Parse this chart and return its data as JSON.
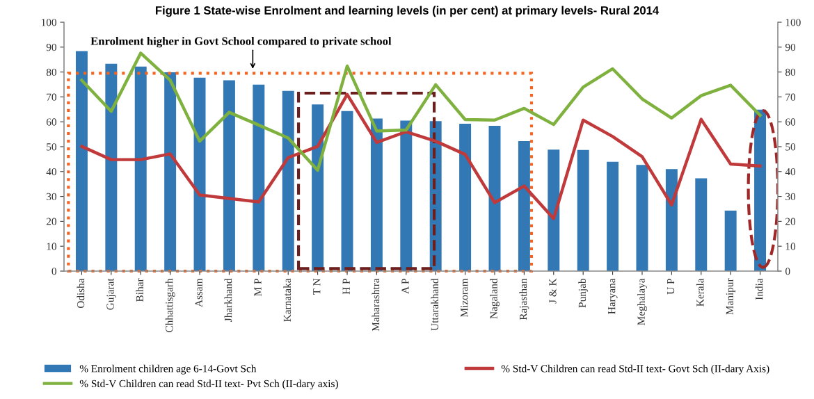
{
  "chart_data": {
    "type": "bar",
    "title": "Figure 1 State-wise Enrolment and learning levels (in per cent) at primary levels- Rural 2014",
    "categories": [
      "Odisha",
      "Gujarat",
      "Bihar",
      "Chhattisgarh",
      "Assam",
      "Jharkhand",
      "M P",
      "Karnataka",
      "T N",
      "H P",
      "Maharashtra",
      "A P",
      "Uttarakhand",
      "Mizoram",
      "Nagaland",
      "Rajasthan",
      "J & K",
      "Punjab",
      "Haryana",
      "Meghalaya",
      "U P",
      "Kerala",
      "Manipur",
      "India"
    ],
    "series": [
      {
        "name": "% Enrolment children age 6-14-Govt Sch",
        "color": "#3278b4",
        "values": [
          88.4,
          83.3,
          82.2,
          79.9,
          77.7,
          76.7,
          74.9,
          72.4,
          67.0,
          64.3,
          61.3,
          60.5,
          60.3,
          59.2,
          58.4,
          52.2,
          48.8,
          48.7,
          43.9,
          42.7,
          41.0,
          37.3,
          24.3,
          64.9
        ]
      },
      {
        "name": "% Std-V Children can read Std-II text- Govt Sch (II-dary Axis)",
        "type": "line",
        "axis": "y2",
        "color": "#c0393b",
        "values": [
          50.1,
          44.8,
          44.8,
          47.1,
          30.6,
          29.2,
          27.8,
          45.6,
          50.1,
          71.0,
          51.7,
          56.0,
          52.2,
          46.9,
          27.5,
          34.2,
          21.1,
          60.7,
          54.1,
          46.0,
          26.6,
          61.0,
          43.0,
          42.2
        ]
      },
      {
        "name": "% Std-V Children can read Std-II text- Pvt Sch (II-dary axis)",
        "type": "line",
        "axis": "y2",
        "color": "#7fb13f",
        "values": [
          76.7,
          64.2,
          87.6,
          76.7,
          52.2,
          63.8,
          58.7,
          53.5,
          40.5,
          82.4,
          56.3,
          56.7,
          74.9,
          60.9,
          60.7,
          65.4,
          58.9,
          73.9,
          81.3,
          69.2,
          61.5,
          70.5,
          74.7,
          62.6
        ]
      }
    ],
    "annotations": [
      "Enrolment higher in Govt School compared to private school"
    ],
    "ylim": [
      0,
      100
    ],
    "yticks": [
      0,
      10,
      20,
      30,
      40,
      50,
      60,
      70,
      80,
      90,
      100
    ],
    "y2lim": [
      0,
      100
    ],
    "y2ticks": [
      0,
      10,
      20,
      30,
      40,
      50,
      60,
      70,
      80,
      90,
      100
    ],
    "grid": false,
    "legend": "bottom",
    "marker": "none",
    "line_style": "solid"
  }
}
